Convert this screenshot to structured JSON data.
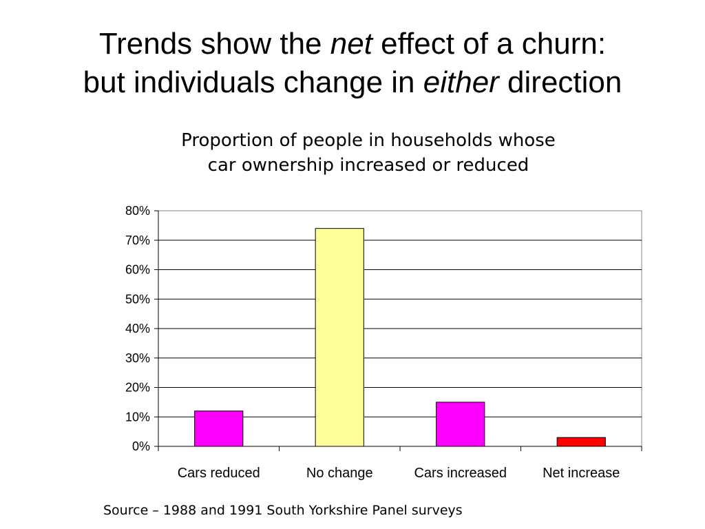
{
  "slide": {
    "title_line1_pre": "Trends show the ",
    "title_line1_em": "net",
    "title_line1_post": " effect of a churn:",
    "title_line2_pre": "but individuals change in ",
    "title_line2_em": "either",
    "title_line2_post": " direction",
    "source": "Source – 1988 and 1991 South Yorkshire Panel surveys"
  },
  "chart_data": {
    "type": "bar",
    "title_line1": "Proportion of people in households whose",
    "title_line2": "car ownership increased or reduced",
    "categories": [
      "Cars reduced",
      "No change",
      "Cars increased",
      "Net increase"
    ],
    "values": [
      0.12,
      0.74,
      0.15,
      0.03
    ],
    "colors": [
      "#ff00ff",
      "#ffff99",
      "#ff00ff",
      "#ff0000"
    ],
    "ylim": [
      0,
      0.8
    ],
    "yticks": [
      0,
      0.1,
      0.2,
      0.3,
      0.4,
      0.5,
      0.6,
      0.7,
      0.8
    ],
    "ytick_labels": [
      "0%",
      "10%",
      "20%",
      "30%",
      "40%",
      "50%",
      "60%",
      "70%",
      "80%"
    ],
    "grid": true,
    "xlabel": "",
    "ylabel": ""
  }
}
